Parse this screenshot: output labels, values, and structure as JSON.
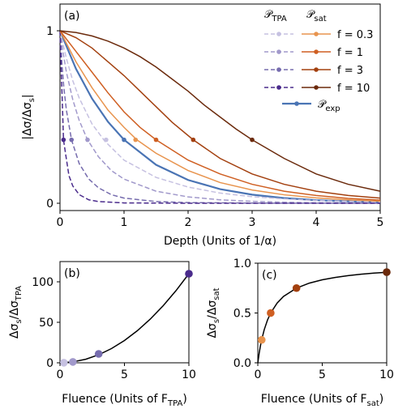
{
  "colors": {
    "exp": "#4a74b4",
    "tpa": [
      "#c6c1e1",
      "#a199cb",
      "#766cae",
      "#4a2b8c"
    ],
    "sat": [
      "#e8944e",
      "#cf5f22",
      "#a3400f",
      "#6b2a0c"
    ],
    "fit": "#000000"
  },
  "chart_data": [
    {
      "panel_label": "(a)",
      "type": "line",
      "xlabel": "Depth (Units of 1/α)",
      "ylabel": "|Δσ/Δσ_s|",
      "xlim": [
        0,
        5
      ],
      "ylim": [
        0,
        1
      ],
      "xticks": [
        0,
        1,
        2,
        3,
        4,
        5
      ],
      "yticks": [
        0,
        1
      ],
      "grid": false,
      "legend": {
        "placement": "top-right",
        "col_headers": [
          "𝒫_TPA",
          "𝒫_sat"
        ],
        "row_labels": [
          "f = 0.3",
          "f = 1",
          "f = 3",
          "f = 10"
        ],
        "exp_label": "𝒫_exp"
      },
      "series": [
        {
          "name": "𝒫_exp",
          "group": "exp",
          "color_index": 0,
          "style": "solid",
          "x": [
            0,
            0.25,
            0.5,
            0.75,
            1,
            1.5,
            2,
            2.5,
            3,
            3.5,
            4,
            4.5,
            5
          ],
          "y": [
            1,
            0.779,
            0.607,
            0.472,
            0.368,
            0.223,
            0.135,
            0.082,
            0.05,
            0.03,
            0.018,
            0.011,
            0.007
          ],
          "marker": {
            "x": 1.0,
            "y": 0.368
          }
        },
        {
          "name": "𝒫_TPA f = 0.3",
          "group": "tpa",
          "color_index": 0,
          "style": "dashed",
          "x": [
            0,
            0.1,
            0.2,
            0.3,
            0.5,
            0.7,
            1,
            1.5,
            2,
            2.5,
            3,
            3.5,
            4,
            4.5,
            5
          ],
          "y": [
            1,
            0.84,
            0.71,
            0.61,
            0.46,
            0.36,
            0.25,
            0.15,
            0.094,
            0.059,
            0.038,
            0.025,
            0.016,
            0.011,
            0.007
          ],
          "marker": {
            "x": 0.72,
            "y": 0.368
          }
        },
        {
          "name": "𝒫_TPA f = 1",
          "group": "tpa",
          "color_index": 1,
          "style": "dashed",
          "x": [
            0,
            0.05,
            0.1,
            0.2,
            0.3,
            0.43,
            0.6,
            0.8,
            1,
            1.5,
            2,
            2.5,
            3,
            3.5,
            4,
            5
          ],
          "y": [
            1,
            0.87,
            0.76,
            0.6,
            0.48,
            0.368,
            0.27,
            0.19,
            0.14,
            0.07,
            0.037,
            0.02,
            0.011,
            0.006,
            0.003,
            0.001
          ],
          "marker": {
            "x": 0.43,
            "y": 0.368
          }
        },
        {
          "name": "𝒫_TPA f = 3",
          "group": "tpa",
          "color_index": 2,
          "style": "dashed",
          "x": [
            0,
            0.03,
            0.06,
            0.1,
            0.18,
            0.3,
            0.45,
            0.6,
            0.8,
            1,
            1.5,
            2,
            3,
            5
          ],
          "y": [
            1,
            0.81,
            0.67,
            0.54,
            0.368,
            0.23,
            0.14,
            0.09,
            0.05,
            0.03,
            0.01,
            0.004,
            0.001,
            0
          ],
          "marker": {
            "x": 0.18,
            "y": 0.368
          }
        },
        {
          "name": "𝒫_TPA f = 10",
          "group": "tpa",
          "color_index": 3,
          "style": "dashed",
          "x": [
            0,
            0.01,
            0.02,
            0.035,
            0.055,
            0.09,
            0.14,
            0.2,
            0.3,
            0.45,
            0.6,
            1,
            2,
            5
          ],
          "y": [
            1,
            0.87,
            0.75,
            0.6,
            0.368,
            0.28,
            0.16,
            0.1,
            0.05,
            0.02,
            0.01,
            0.002,
            0,
            0
          ],
          "marker": {
            "x": 0.055,
            "y": 0.368
          }
        },
        {
          "name": "𝒫_sat f = 0.3",
          "group": "sat",
          "color_index": 0,
          "style": "solid",
          "x": [
            0,
            0.25,
            0.5,
            0.75,
            1,
            1.2,
            1.5,
            2,
            2.5,
            3,
            3.5,
            4,
            4.5,
            5
          ],
          "y": [
            1,
            0.82,
            0.67,
            0.54,
            0.44,
            0.368,
            0.29,
            0.19,
            0.12,
            0.077,
            0.049,
            0.031,
            0.02,
            0.012
          ],
          "marker": {
            "x": 1.18,
            "y": 0.368
          }
        },
        {
          "name": "𝒫_sat f = 1",
          "group": "sat",
          "color_index": 1,
          "style": "solid",
          "x": [
            0,
            0.25,
            0.5,
            0.75,
            1,
            1.25,
            1.5,
            2,
            2.5,
            3,
            3.5,
            4,
            4.5,
            5
          ],
          "y": [
            1,
            0.88,
            0.76,
            0.64,
            0.53,
            0.44,
            0.368,
            0.25,
            0.17,
            0.11,
            0.07,
            0.045,
            0.028,
            0.018
          ],
          "marker": {
            "x": 1.5,
            "y": 0.368
          }
        },
        {
          "name": "𝒫_sat f = 3",
          "group": "sat",
          "color_index": 2,
          "style": "solid",
          "x": [
            0,
            0.25,
            0.5,
            0.75,
            1,
            1.25,
            1.5,
            1.75,
            2.08,
            2.5,
            3,
            3.5,
            4,
            4.5,
            5
          ],
          "y": [
            1,
            0.96,
            0.9,
            0.82,
            0.74,
            0.65,
            0.56,
            0.47,
            0.368,
            0.26,
            0.17,
            0.11,
            0.07,
            0.045,
            0.03
          ],
          "marker": {
            "x": 2.08,
            "y": 0.368
          }
        },
        {
          "name": "𝒫_sat f = 10",
          "group": "sat",
          "color_index": 3,
          "style": "solid",
          "x": [
            0,
            0.25,
            0.5,
            0.75,
            1,
            1.25,
            1.5,
            1.75,
            2,
            2.25,
            2.5,
            2.75,
            3,
            3.5,
            4,
            4.5,
            5
          ],
          "y": [
            1,
            0.99,
            0.97,
            0.94,
            0.9,
            0.85,
            0.79,
            0.72,
            0.65,
            0.57,
            0.5,
            0.43,
            0.368,
            0.26,
            0.17,
            0.11,
            0.07
          ],
          "marker": {
            "x": 3.0,
            "y": 0.368
          }
        }
      ]
    },
    {
      "panel_label": "(b)",
      "type": "scatter",
      "xlabel": "Fluence (Units of F_TPA)",
      "ylabel": "Δσ_s/Δσ_TPA",
      "xlim": [
        0,
        10
      ],
      "ylim": [
        0,
        125
      ],
      "xticks": [
        0,
        5,
        10
      ],
      "yticks": [
        0,
        50,
        100
      ],
      "grid": false,
      "points": [
        {
          "x": 0.3,
          "y": 0.1,
          "color_index": 0
        },
        {
          "x": 1,
          "y": 1.1,
          "color_index": 1
        },
        {
          "x": 3,
          "y": 11,
          "color_index": 2
        },
        {
          "x": 10,
          "y": 110,
          "color_index": 3
        }
      ],
      "fit": {
        "x": [
          0,
          1,
          2,
          3,
          4,
          5,
          6,
          7,
          8,
          9,
          10
        ],
        "y": [
          0,
          1.1,
          4.4,
          9.9,
          17.6,
          27.5,
          39.6,
          53.9,
          70.4,
          89.1,
          110
        ]
      }
    },
    {
      "panel_label": "(c)",
      "type": "scatter",
      "xlabel": "Fluence (Units of F_sat)",
      "ylabel": "Δσ_s/Δσ_sat",
      "xlim": [
        0,
        10
      ],
      "ylim": [
        0,
        1
      ],
      "xticks": [
        0,
        5,
        10
      ],
      "yticks": [
        0.0,
        0.5,
        1.0
      ],
      "grid": false,
      "points": [
        {
          "x": 0.3,
          "y": 0.23,
          "color_index": 0
        },
        {
          "x": 1,
          "y": 0.5,
          "color_index": 1
        },
        {
          "x": 3,
          "y": 0.75,
          "color_index": 2
        },
        {
          "x": 10,
          "y": 0.91,
          "color_index": 3
        }
      ],
      "fit": {
        "x": [
          0,
          0.1,
          0.2,
          0.3,
          0.5,
          0.75,
          1,
          1.5,
          2,
          3,
          4,
          5,
          6,
          7,
          8,
          9,
          10
        ],
        "y": [
          0,
          0.091,
          0.167,
          0.231,
          0.333,
          0.429,
          0.5,
          0.6,
          0.667,
          0.75,
          0.8,
          0.833,
          0.857,
          0.875,
          0.889,
          0.9,
          0.909
        ]
      }
    }
  ]
}
